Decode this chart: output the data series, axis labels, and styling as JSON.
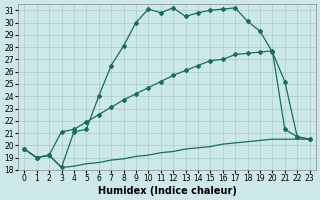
{
  "xlabel": "Humidex (Indice chaleur)",
  "ylabel": "",
  "xlim": [
    -0.5,
    23.5
  ],
  "ylim": [
    18,
    31.5
  ],
  "xticks": [
    0,
    1,
    2,
    3,
    4,
    5,
    6,
    7,
    8,
    9,
    10,
    11,
    12,
    13,
    14,
    15,
    16,
    17,
    18,
    19,
    20,
    21,
    22,
    23
  ],
  "yticks": [
    18,
    19,
    20,
    21,
    22,
    23,
    24,
    25,
    26,
    27,
    28,
    29,
    30,
    31
  ],
  "background_color": "#cce8e8",
  "grid_color": "#aacccc",
  "line_color": "#1a6b60",
  "line1_x": [
    0,
    1,
    2,
    3,
    4,
    5,
    6,
    7,
    8,
    9,
    10,
    11,
    12,
    13,
    14,
    15,
    16,
    17,
    18,
    19,
    20,
    21,
    22,
    23
  ],
  "line1_y": [
    19.7,
    19.0,
    19.2,
    18.2,
    21.1,
    21.3,
    24.0,
    26.5,
    28.1,
    30.0,
    31.1,
    30.8,
    31.2,
    30.5,
    30.8,
    31.0,
    31.1,
    31.2,
    30.1,
    29.3,
    27.6,
    25.2,
    20.7,
    20.5
  ],
  "line2_x": [
    0,
    1,
    2,
    3,
    4,
    5,
    6,
    7,
    8,
    9,
    10,
    11,
    12,
    13,
    14,
    15,
    16,
    17,
    18,
    19,
    20,
    21,
    22,
    23
  ],
  "line2_y": [
    19.7,
    19.0,
    19.2,
    21.1,
    21.3,
    21.9,
    22.5,
    23.1,
    23.7,
    24.2,
    24.7,
    25.2,
    25.7,
    26.1,
    26.5,
    26.9,
    27.0,
    27.4,
    27.5,
    27.6,
    27.7,
    21.3,
    20.7,
    20.5
  ],
  "line3_x": [
    0,
    1,
    2,
    3,
    4,
    5,
    6,
    7,
    8,
    9,
    10,
    11,
    12,
    13,
    14,
    15,
    16,
    17,
    18,
    19,
    20,
    21,
    22,
    23
  ],
  "line3_y": [
    19.7,
    19.0,
    19.2,
    18.2,
    18.3,
    18.5,
    18.6,
    18.8,
    18.9,
    19.1,
    19.2,
    19.4,
    19.5,
    19.7,
    19.8,
    19.9,
    20.1,
    20.2,
    20.3,
    20.4,
    20.5,
    20.5,
    20.5,
    20.5
  ],
  "title_fontsize": 7,
  "tick_fontsize": 5.5,
  "xlabel_fontsize": 7
}
